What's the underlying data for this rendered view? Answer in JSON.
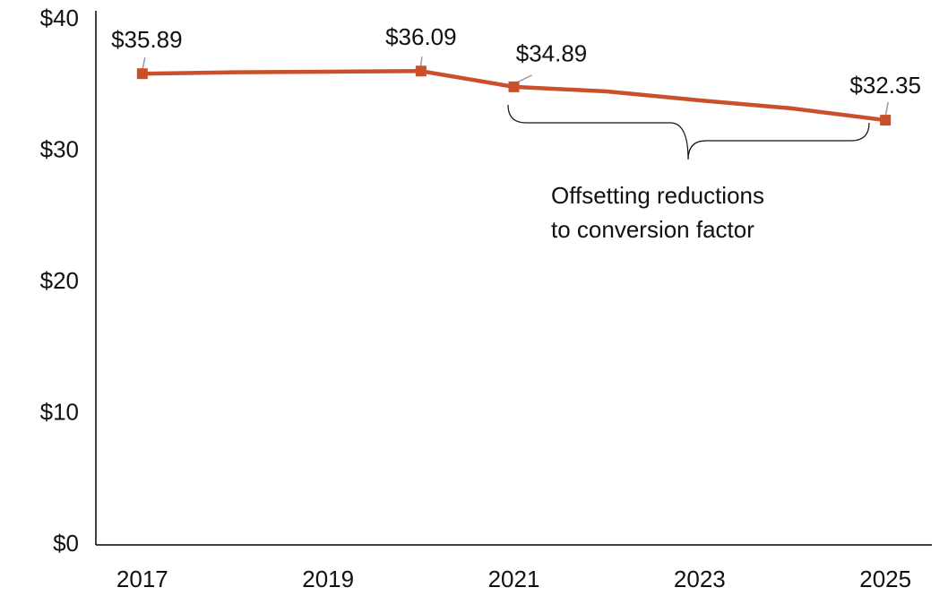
{
  "chart_data": {
    "type": "line",
    "x": [
      2017,
      2018,
      2019,
      2020,
      2021,
      2022,
      2023,
      2024,
      2025
    ],
    "series": [
      {
        "color": "#c9502a",
        "values": [
          35.89,
          36.0,
          36.04,
          36.09,
          34.89,
          34.54,
          33.86,
          33.24,
          32.35
        ],
        "value_labels": [
          "$35.89",
          null,
          null,
          "$36.09",
          "$34.89",
          null,
          null,
          null,
          "$32.35"
        ]
      }
    ],
    "xlim": [
      2016.5,
      2025.5
    ],
    "xticks": [
      2017,
      2019,
      2021,
      2023,
      2025
    ],
    "ylim": [
      0,
      40
    ],
    "yticks": [
      {
        "value": 0,
        "label": "$0"
      },
      {
        "value": 10,
        "label": "$10"
      },
      {
        "value": 20,
        "label": "$20"
      },
      {
        "value": 30,
        "label": "$30"
      },
      {
        "value": 40,
        "label": "$40"
      }
    ],
    "annotation": [
      "Offsetting reductions",
      "to conversion factor"
    ]
  }
}
